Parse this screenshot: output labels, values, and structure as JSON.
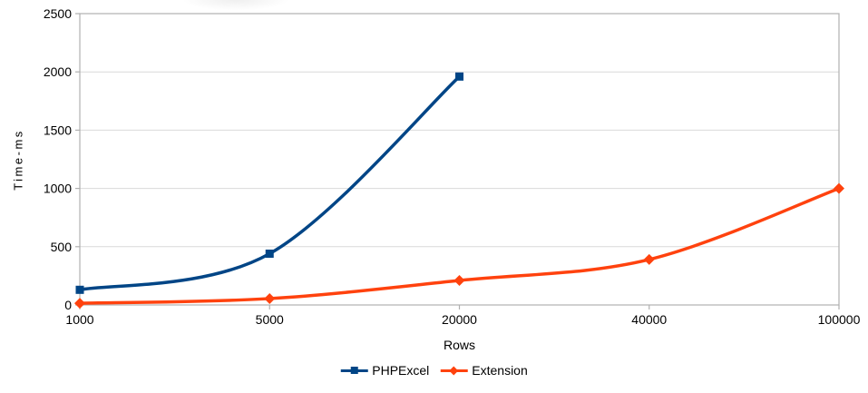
{
  "chart_data": {
    "type": "line",
    "title": "",
    "xlabel": "Rows",
    "ylabel": "Time-ms",
    "x_axis_type": "categorical",
    "categories": [
      "1000",
      "5000",
      "20000",
      "40000",
      "100000"
    ],
    "series": [
      {
        "name": "PHPExcel",
        "color": "#004586",
        "marker": "square",
        "values": [
          130,
          440,
          1960,
          null,
          null
        ]
      },
      {
        "name": "Extension",
        "color": "#FF420E",
        "marker": "diamond",
        "values": [
          15,
          55,
          210,
          390,
          1000
        ]
      }
    ],
    "y_ticks": [
      0,
      500,
      1000,
      1500,
      2000,
      2500
    ],
    "ylim": [
      0,
      2500
    ],
    "grid": "horizontal",
    "legend_position": "bottom-center",
    "line_style": "smooth",
    "colors": {
      "grid": "#d9d9d9",
      "axis_frame": "#b0b0b0",
      "text": "#000000",
      "background": "#ffffff"
    }
  }
}
